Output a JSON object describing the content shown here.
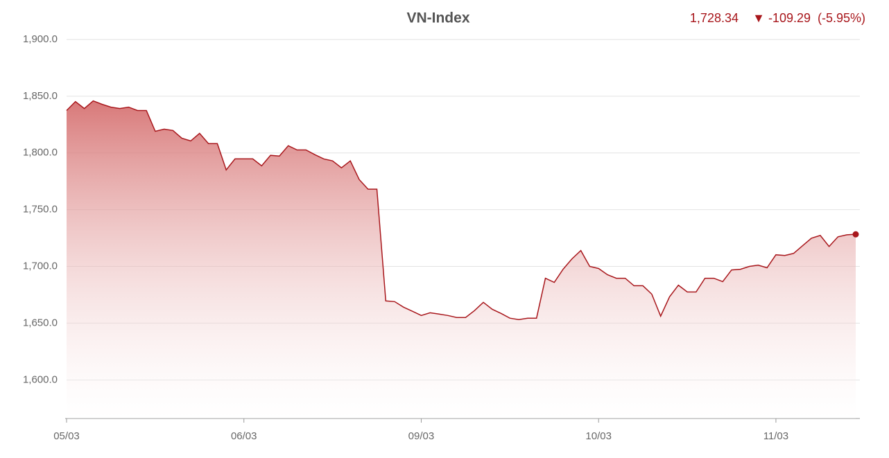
{
  "chart_data": {
    "type": "area",
    "title": "VN-Index",
    "current": "1,728.34",
    "change": "▼ -109.29",
    "change_percent": "(-5.95%)",
    "color": "#a8161b",
    "grid": true,
    "categories": [
      "05/03",
      null,
      null,
      null,
      null,
      null,
      null,
      null,
      null,
      null,
      null,
      null,
      null,
      null,
      null,
      null,
      null,
      null,
      null,
      null,
      "06/03",
      null,
      null,
      null,
      null,
      null,
      null,
      null,
      null,
      null,
      null,
      null,
      null,
      null,
      null,
      null,
      null,
      null,
      null,
      null,
      "09/03",
      null,
      null,
      null,
      null,
      null,
      null,
      null,
      null,
      null,
      null,
      null,
      null,
      null,
      null,
      null,
      null,
      null,
      null,
      null,
      "10/03",
      null,
      null,
      null,
      null,
      null,
      null,
      null,
      null,
      null,
      null,
      null,
      null,
      null,
      null,
      null,
      null,
      null,
      null,
      null,
      "11/03",
      null,
      null,
      null,
      null,
      null,
      null,
      null,
      null,
      null
    ],
    "values": [
      1837.4,
      1845.3,
      1839.2,
      1845.9,
      1842.9,
      1840.4,
      1839.2,
      1840.4,
      1837.4,
      1837.4,
      1819.1,
      1821,
      1819.8,
      1813,
      1810.6,
      1817.3,
      1808.2,
      1808.2,
      1785.1,
      1794.8,
      1794.8,
      1794.8,
      1788.7,
      1797.9,
      1797.3,
      1806.4,
      1802.7,
      1802.7,
      1798.5,
      1794.8,
      1793,
      1786.9,
      1793,
      1776.6,
      1768.1,
      1768.1,
      1669.6,
      1669,
      1664.1,
      1660.5,
      1656.8,
      1659.2,
      1658,
      1656.8,
      1655,
      1655,
      1661.1,
      1668.4,
      1662.3,
      1658.6,
      1654.4,
      1653.2,
      1654.4,
      1654.4,
      1689.6,
      1686,
      1697.5,
      1706.7,
      1714,
      1700,
      1698.2,
      1692.7,
      1689.6,
      1689.6,
      1683,
      1683,
      1675.6,
      1656.2,
      1673.2,
      1683.5,
      1677.5,
      1677.5,
      1689.6,
      1689.6,
      1686.6,
      1696.9,
      1697.5,
      1700,
      1701.2,
      1698.8,
      1710.3,
      1709.7,
      1711.5,
      1718.2,
      1724.9,
      1727.3,
      1717.6,
      1726.1,
      1727.9,
      1728.34
    ],
    "ylim": [
      1566,
      1900
    ],
    "yticks": [
      {
        "value": 1600,
        "label": "1,600.0"
      },
      {
        "value": 1650,
        "label": "1,650.0"
      },
      {
        "value": 1700,
        "label": "1,700.0"
      },
      {
        "value": 1750,
        "label": "1,750.0"
      },
      {
        "value": 1800,
        "label": "1,800.0"
      },
      {
        "value": 1850,
        "label": "1,850.0"
      },
      {
        "value": 1900,
        "label": "1,900.0"
      }
    ]
  }
}
